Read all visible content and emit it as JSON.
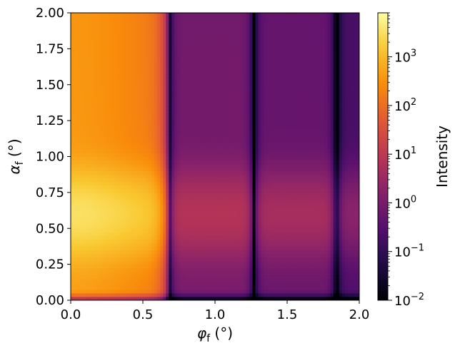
{
  "chart_data": {
    "type": "heatmap",
    "title": "",
    "xlabel": "φf (°)",
    "ylabel": "αf (°)",
    "xlabel_parts": {
      "symbol": "φ",
      "sub": "f",
      "unit": "(°)"
    },
    "ylabel_parts": {
      "symbol": "α",
      "sub": "f",
      "unit": "(°)"
    },
    "xlim": [
      0.0,
      2.0
    ],
    "ylim": [
      0.0,
      2.0
    ],
    "x_ticks": [
      "0.0",
      "0.5",
      "1.0",
      "1.5",
      "2.0"
    ],
    "y_ticks": [
      "0.00",
      "0.25",
      "0.50",
      "0.75",
      "1.00",
      "1.25",
      "1.50",
      "1.75",
      "2.00"
    ],
    "grid": false,
    "colormap": "inferno",
    "colorbar": {
      "label": "Intensity",
      "scale": "log",
      "range": [
        0.01,
        8000
      ],
      "ticks": [
        {
          "base": "10",
          "exp": "3",
          "value": 1000
        },
        {
          "base": "10",
          "exp": "2",
          "value": 100
        },
        {
          "base": "10",
          "exp": "1",
          "value": 10
        },
        {
          "base": "10",
          "exp": "0",
          "value": 1
        },
        {
          "base": "10",
          "exp": "−1",
          "value": 0.1
        },
        {
          "base": "10",
          "exp": "−2",
          "value": 0.01
        }
      ]
    },
    "features": {
      "intensity_minima_phi_f": [
        0.0,
        0.68,
        1.27,
        1.84
      ],
      "yoneda_peak_alpha_f": 0.6,
      "max_intensity_near": {
        "phi_f": 0.1,
        "alpha_f": 0.6,
        "value": 4000
      }
    }
  }
}
